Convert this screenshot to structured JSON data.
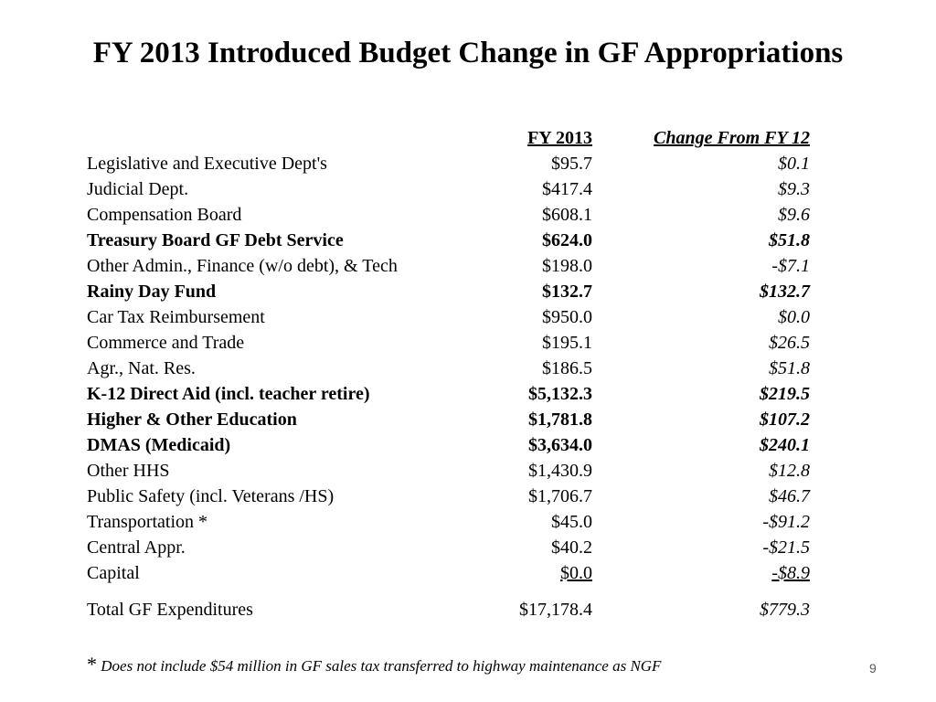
{
  "title": "FY 2013 Introduced Budget Change in GF Appropriations",
  "table": {
    "header": {
      "label": "",
      "fy": "FY 2013",
      "change": "Change From FY 12"
    },
    "rows": [
      {
        "label": "Legislative and Executive Dept's",
        "fy": "$95.7",
        "change": "$0.1",
        "bold": false
      },
      {
        "label": "Judicial Dept.",
        "fy": "$417.4",
        "change": "$9.3",
        "bold": false
      },
      {
        "label": "Compensation Board",
        "fy": "$608.1",
        "change": "$9.6",
        "bold": false
      },
      {
        "label": "Treasury Board GF Debt Service",
        "fy": "$624.0",
        "change": "$51.8",
        "bold": true
      },
      {
        "label": "Other Admin., Finance (w/o debt), & Tech",
        "fy": "$198.0",
        "change": "-$7.1",
        "bold": false
      },
      {
        "label": "Rainy Day Fund",
        "fy": "$132.7",
        "change": "$132.7",
        "bold": true
      },
      {
        "label": "Car Tax Reimbursement",
        "fy": "$950.0",
        "change": "$0.0",
        "bold": false
      },
      {
        "label": "Commerce and Trade",
        "fy": "$195.1",
        "change": "$26.5",
        "bold": false
      },
      {
        "label": "Agr., Nat. Res.",
        "fy": "$186.5",
        "change": "$51.8",
        "bold": false
      },
      {
        "label": "K-12 Direct Aid (incl. teacher retire)",
        "fy": "$5,132.3",
        "change": "$219.5",
        "bold": true
      },
      {
        "label": "Higher & Other Education",
        "fy": "$1,781.8",
        "change": "$107.2",
        "bold": true
      },
      {
        "label": "DMAS (Medicaid)",
        "fy": "$3,634.0",
        "change": "$240.1",
        "bold": true
      },
      {
        "label": "Other HHS",
        "fy": "$1,430.9",
        "change": "$12.8",
        "bold": false
      },
      {
        "label": "Public Safety (incl. Veterans /HS)",
        "fy": "$1,706.7",
        "change": "$46.7",
        "bold": false
      },
      {
        "label": "Transportation *",
        "fy": "$45.0",
        "change": "-$91.2",
        "bold": false
      },
      {
        "label": "Central Appr.",
        "fy": "$40.2",
        "change": "-$21.5",
        "bold": false
      },
      {
        "label": "Capital",
        "fy": "$0.0",
        "change": "-$8.9",
        "bold": false
      }
    ],
    "total": {
      "label": "Total GF Expenditures",
      "fy": "$17,178.4",
      "change": "$779.3"
    }
  },
  "footnote": {
    "marker": "*",
    "text": "Does not include $54 million in GF sales tax transferred to highway maintenance as NGF"
  },
  "page_number": "9"
}
